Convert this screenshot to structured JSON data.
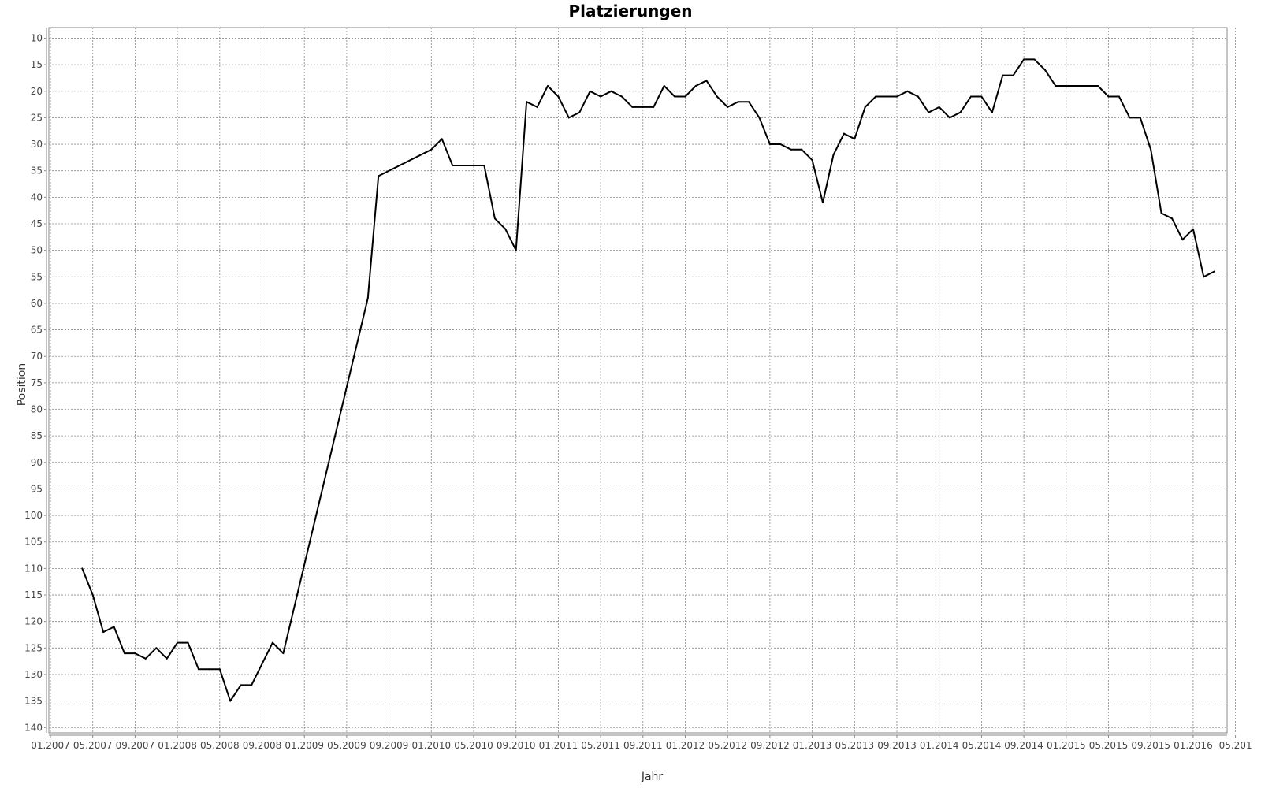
{
  "chart_data": {
    "type": "line",
    "title": "Platzierungen",
    "xlabel": "Jahr",
    "ylabel": "Position",
    "y_inverted": true,
    "ylim": [
      141,
      8
    ],
    "y_ticks": [
      10,
      15,
      20,
      25,
      30,
      35,
      40,
      45,
      50,
      55,
      60,
      65,
      70,
      75,
      80,
      85,
      90,
      95,
      100,
      105,
      110,
      115,
      120,
      125,
      130,
      135,
      140
    ],
    "x_ticks": [
      "01.2007",
      "05.2007",
      "09.2007",
      "01.2008",
      "05.2008",
      "09.2008",
      "01.2009",
      "05.2009",
      "09.2009",
      "01.2010",
      "05.2010",
      "09.2010",
      "01.2011",
      "05.2011",
      "09.2011",
      "01.2012",
      "05.2012",
      "09.2012",
      "01.2013",
      "05.2013",
      "09.2013",
      "01.2014",
      "05.2014",
      "09.2014",
      "01.2015",
      "05.2015",
      "09.2015",
      "01.2016",
      "05.201"
    ],
    "grid": true,
    "line_color": "#000000",
    "series": [
      {
        "x": [
          "2007-04",
          "2007-05",
          "2007-06",
          "2007-07",
          "2007-08",
          "2007-09",
          "2007-10",
          "2007-11",
          "2007-12",
          "2008-01",
          "2008-02",
          "2008-03",
          "2008-04",
          "2008-05",
          "2008-06",
          "2008-07",
          "2008-08",
          "2008-10",
          "2008-11",
          "2009-07",
          "2009-08",
          "2010-01",
          "2010-02",
          "2010-03",
          "2010-04",
          "2010-05",
          "2010-06",
          "2010-07",
          "2010-08",
          "2010-09",
          "2010-10",
          "2010-11",
          "2010-12",
          "2011-01",
          "2011-02",
          "2011-03",
          "2011-04",
          "2011-05",
          "2011-06",
          "2011-07",
          "2011-08",
          "2011-09",
          "2011-10",
          "2011-11",
          "2011-12",
          "2012-01",
          "2012-02",
          "2012-03",
          "2012-04",
          "2012-05",
          "2012-06",
          "2012-07",
          "2012-08",
          "2012-09",
          "2012-10",
          "2012-11",
          "2012-12",
          "2013-01",
          "2013-02",
          "2013-03",
          "2013-04",
          "2013-05",
          "2013-06",
          "2013-07",
          "2013-08",
          "2013-09",
          "2013-10",
          "2013-11",
          "2013-12",
          "2014-01",
          "2014-02",
          "2014-03",
          "2014-04",
          "2014-05",
          "2014-06",
          "2014-07",
          "2014-08",
          "2014-09",
          "2014-10",
          "2014-11",
          "2014-12",
          "2015-01",
          "2015-02",
          "2015-03",
          "2015-04",
          "2015-05",
          "2015-06",
          "2015-07",
          "2015-08",
          "2015-09",
          "2015-10",
          "2015-11",
          "2015-12",
          "2016-01",
          "2016-02",
          "2016-03"
        ],
        "values": [
          110,
          115,
          122,
          121,
          126,
          126,
          127,
          125,
          127,
          124,
          124,
          129,
          129,
          129,
          135,
          132,
          132,
          124,
          126,
          59,
          36,
          31,
          29,
          34,
          34,
          34,
          34,
          44,
          46,
          50,
          22,
          23,
          19,
          21,
          25,
          24,
          20,
          21,
          20,
          21,
          23,
          23,
          23,
          19,
          21,
          21,
          19,
          18,
          21,
          23,
          22,
          22,
          25,
          30,
          30,
          31,
          31,
          33,
          41,
          32,
          28,
          29,
          23,
          21,
          21,
          21,
          20,
          21,
          24,
          23,
          25,
          24,
          21,
          21,
          24,
          17,
          17,
          14,
          14,
          16,
          19,
          19,
          19,
          19,
          19,
          21,
          21,
          25,
          25,
          31,
          43,
          44,
          48,
          46,
          55,
          54
        ]
      }
    ]
  }
}
